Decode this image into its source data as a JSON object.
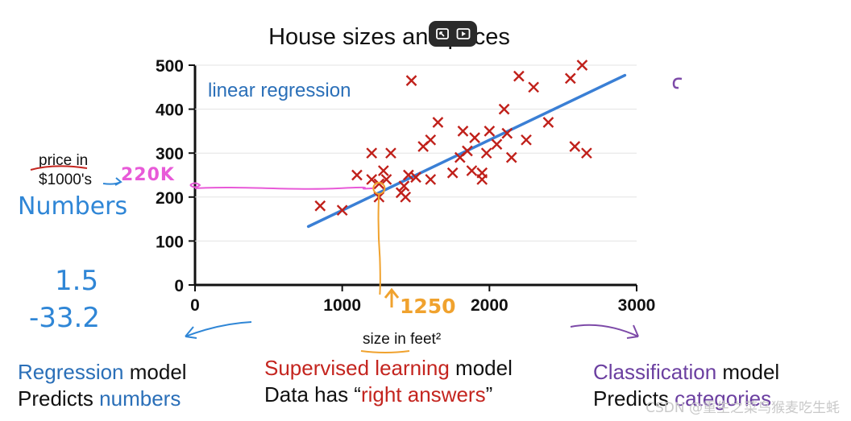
{
  "chart_data": {
    "type": "scatter",
    "title": "House sizes and prices",
    "xlabel": "size in feet²",
    "ylabel": "price in $1000's",
    "xlim": [
      0,
      3000
    ],
    "ylim": [
      0,
      500
    ],
    "x_ticks": [
      "0",
      "1000",
      "2000",
      "3000"
    ],
    "y_ticks": [
      "0",
      "100",
      "200",
      "300",
      "400",
      "500"
    ],
    "series": [
      {
        "name": "houses",
        "marker": "x",
        "color": "#c0201a",
        "points": [
          [
            850,
            180
          ],
          [
            1000,
            170
          ],
          [
            1100,
            250
          ],
          [
            1200,
            240
          ],
          [
            1200,
            300
          ],
          [
            1250,
            200
          ],
          [
            1250,
            230
          ],
          [
            1280,
            260
          ],
          [
            1300,
            240
          ],
          [
            1330,
            300
          ],
          [
            1400,
            210
          ],
          [
            1420,
            225
          ],
          [
            1430,
            200
          ],
          [
            1450,
            250
          ],
          [
            1470,
            465
          ],
          [
            1500,
            245
          ],
          [
            1550,
            315
          ],
          [
            1600,
            330
          ],
          [
            1600,
            240
          ],
          [
            1650,
            370
          ],
          [
            1750,
            255
          ],
          [
            1800,
            290
          ],
          [
            1820,
            350
          ],
          [
            1850,
            305
          ],
          [
            1880,
            260
          ],
          [
            1900,
            335
          ],
          [
            1950,
            240
          ],
          [
            1950,
            255
          ],
          [
            1980,
            300
          ],
          [
            2000,
            350
          ],
          [
            2050,
            320
          ],
          [
            2100,
            400
          ],
          [
            2120,
            345
          ],
          [
            2150,
            290
          ],
          [
            2200,
            475
          ],
          [
            2250,
            330
          ],
          [
            2300,
            450
          ],
          [
            2400,
            370
          ],
          [
            2550,
            470
          ],
          [
            2580,
            315
          ],
          [
            2630,
            500
          ],
          [
            2660,
            300
          ]
        ]
      }
    ],
    "fit_line": {
      "name": "linear regression",
      "color": "#3a7fd5",
      "x": [
        770,
        2920
      ],
      "y": [
        133,
        477
      ]
    },
    "annotations": {
      "predicted_x": 1250,
      "predicted_y": 220,
      "x_label": "1250",
      "y_label": "220K"
    }
  },
  "figure": {
    "price_label_1": "price in",
    "price_label_2": "$1000's",
    "numbers_label": "Numbers",
    "example_values": [
      "1.5",
      "-33.2"
    ]
  },
  "footer": {
    "regression": {
      "line1_highlight": "Regression",
      "line1_rest": " model",
      "line2_prefix": "Predicts ",
      "line2_highlight": "numbers"
    },
    "supervised": {
      "line1_highlight": "Supervised learning",
      "line1_rest": " model",
      "line2_prefix": "Data has “",
      "line2_highlight": "right answers",
      "line2_suffix": "”"
    },
    "classification": {
      "line1_highlight": "Classification",
      "line1_rest": " model",
      "line2_prefix": "Predicts ",
      "line2_highlight": "categories"
    }
  },
  "watermark": "CSDN @重生之菜鸟猴麦吃生蚝",
  "colors": {
    "regression": "#2a6fb8",
    "supervised": "#c4251f",
    "classification": "#6b3fa0",
    "pink": "#e85ad8",
    "orange": "#f0a22e",
    "hand_blue": "#2f86d6",
    "purple_arrow": "#7d4aa8"
  }
}
